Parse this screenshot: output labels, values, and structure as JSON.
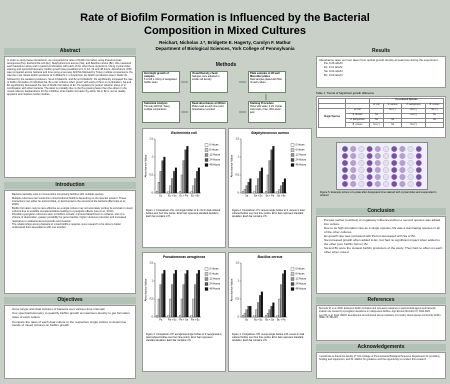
{
  "header": {
    "title": "Rate of Biofilm Formation is Influenced by the Bacterial Composition in Mixed Cultures",
    "authors": "Reichart, Nicholas J.*, Bridgette E. Hagerty, Carolyn F. Mathur",
    "affiliation": "Department of Biological Sciences, York College of Pennsylvania"
  },
  "abstract": {
    "heading": "Abstract",
    "text": "In order to study these interactions, we compared the rates of biofilm formation using Pseudomonas aeruginosa (Pa), Escherichia coli (Ec), Staphylococcus aureus (Sa), and Bacillus cereus (Bc). We measured each bacterium alone and in paired combination with each of the other three organisms. Using crystal violet staining and spectrophotometry, biofilm growth was quantified at 0, 6, 12, 24 and 48 hours. Absorbance (OD) was compared across bacteria and time using a two-way ANOVA followed by Tukey multiple comparisons. Pa was the most robust biofilm producer at 0.46abs/hr. In comparison, Ec biofilm production was 0.11abs /hr., followed by the weakest producers, Sa at 0.04abs/hr. and Bc at 0.03abs/hr. Pa significantly increased the rate of biofilm formation of individual Sa, Bc or Ec cultures when grown with each of them in combination. Sa and Bc significantly decreased the rate of biofilm formation of Ec. Pa replaces its partner whether alone or in combination with other bacteria. The latter is probably due to the Pa growing faster than the others in the mixed cultures. Explanations for the inhibition of Ec biofilm formation by either Sa or Bc is not as readily apparent and requires further studies."
  },
  "introduction": {
    "heading": "Introduction",
    "bullets": [
      "Bacteria naturally exist in communities comprising biofilms with multiple species.",
      "Multiple outcomes can result from mixed cultured biofilms depending on the species present. These interactions can either be antimicrobial, or detrimental to the survival of the bacteria (Burmolle et al., 2006).",
      "Biofilm formation may be less effective as a single culture may not accurately portray its survival in mixed cultures due to possible complementation leading to synergistic effects (Lee et al., 2014).",
      "Possible synergistic outcomes seen in biofilms include: improved attachment to surfaces, loss of a chance of desiccation, greater possibility for gene transfer, higher virulence potential, and increased resistance to antibacterial compounds and invasion.",
      "The relationships among bacteria in mixed biofilms requires more research to be done to better understand their associations with one another."
    ]
  },
  "objectives": {
    "heading": "Objectives",
    "bullets": [
      "Grow single and dual cultures of bacteria over various time intervals",
      "Use spectrophotometry to quantify biofilm growth at maximum density to get formation rates of each culture",
      "Compare the rates of each dual culture to the respective single culture to determine trends of mixed cultures on biofilm growth"
    ]
  },
  "methods": {
    "heading": "Methods",
    "steps": [
      {
        "title": "Overnight growth of samples",
        "text": "5 ml LB 1 colony of designated biofilm strain"
      },
      {
        "title": "Visual Density check",
        "text": "Samples were adjusted to similar cell density"
      },
      {
        "title": "Plate samples in 96 well Microtiter plates",
        "text": "Dual samples plated with 50ul of each culture"
      },
      {
        "title": "Statistical Analysis",
        "text": "Two-way ANOVA, Tukey multiple comparisons"
      },
      {
        "title": "Read absorbance at 600nm",
        "text": "Plates read at each time point, Absorbance recorded"
      },
      {
        "title": "Staining Procedure",
        "text": "Rinse with water, 0.1% crystal violet stain, rinse, 30% acetic acid"
      }
    ]
  },
  "figures": [
    {
      "title": "Escherichia coli",
      "caption": "Figure 1. Comparison of E. coli single bottles to E. coli in dual cultured bottles over four time points. Error bars represent standard deviation. Each bar contains n=5.",
      "ylabel": "Absorbance Value",
      "categories": [
        "Ec",
        "Ec + Sa",
        "Ec + Pa",
        "Ec + Bc"
      ],
      "ylim": [
        0,
        1.5
      ],
      "yticks": [
        0,
        0.5,
        1,
        1.5
      ],
      "series": [
        {
          "name": "0 Hours",
          "color": "#ffffff",
          "values": [
            0.05,
            0.05,
            0.05,
            0.05
          ]
        },
        {
          "name": "6 Hours",
          "color": "#cccccc",
          "values": [
            0.3,
            0.2,
            0.5,
            0.2
          ]
        },
        {
          "name": "12 Hours",
          "color": "#999999",
          "values": [
            0.6,
            0.4,
            0.9,
            0.4
          ]
        },
        {
          "name": "24 Hours",
          "color": "#555555",
          "values": [
            0.9,
            0.6,
            1.2,
            0.6
          ]
        },
        {
          "name": "48 Hours",
          "color": "#111111",
          "values": [
            1.0,
            0.7,
            1.3,
            0.7
          ]
        }
      ]
    },
    {
      "title": "Staphylococcus aureus",
      "caption": "Figure 2. Comparison of S. aureus single bottles to S. aureus in dual cultured bottles over four time points. Error bars represent standard deviation. Each bar contains n=5.",
      "ylabel": "Absorbance Value",
      "categories": [
        "Sa",
        "Sa + Ec",
        "Sa + Pa",
        "Sa + Bc"
      ],
      "ylim": [
        0,
        1.5
      ],
      "yticks": [
        0,
        0.5,
        1,
        1.5
      ],
      "series": [
        {
          "name": "0 Hours",
          "color": "#ffffff",
          "values": [
            0.05,
            0.05,
            0.05,
            0.05
          ]
        },
        {
          "name": "6 Hours",
          "color": "#cccccc",
          "values": [
            0.1,
            0.2,
            0.5,
            0.1
          ]
        },
        {
          "name": "12 Hours",
          "color": "#999999",
          "values": [
            0.2,
            0.4,
            0.9,
            0.2
          ]
        },
        {
          "name": "24 Hours",
          "color": "#555555",
          "values": [
            0.3,
            0.6,
            1.2,
            0.3
          ]
        },
        {
          "name": "48 Hours",
          "color": "#111111",
          "values": [
            0.4,
            0.7,
            1.3,
            0.4
          ]
        }
      ]
    },
    {
      "title": "Pseudomonas aeruginosa",
      "caption": "Figure 3. Comparison of P. aeruginosa single bottles to P. aeruginosa in dual cultured bottles over four time points. Error bars represent standard deviation. Each bar contains n=5.",
      "ylabel": "Absorbance Value",
      "categories": [
        "Pa",
        "Pa + Ec",
        "Pa + Sa",
        "Pa + Bc"
      ],
      "ylim": [
        0,
        1.5
      ],
      "yticks": [
        0,
        0.5,
        1,
        1.5
      ],
      "series": [
        {
          "name": "0 Hours",
          "color": "#ffffff",
          "values": [
            0.05,
            0.05,
            0.05,
            0.05
          ]
        },
        {
          "name": "6 Hours",
          "color": "#cccccc",
          "values": [
            0.5,
            0.5,
            0.5,
            0.5
          ]
        },
        {
          "name": "12 Hours",
          "color": "#999999",
          "values": [
            0.9,
            0.9,
            0.9,
            0.9
          ]
        },
        {
          "name": "24 Hours",
          "color": "#555555",
          "values": [
            1.2,
            1.2,
            1.2,
            1.2
          ]
        },
        {
          "name": "48 Hours",
          "color": "#111111",
          "values": [
            1.3,
            1.3,
            1.3,
            1.3
          ]
        }
      ]
    },
    {
      "title": "Bacillus cereus",
      "caption": "Figure 4. Comparison of B. cereus single bottles to B. cereus in dual cultured bottles over four time points. Error bars represent standard deviation. Each bar contains n=5.",
      "ylabel": "Absorbance Value",
      "categories": [
        "Bc",
        "Bc + Ec",
        "Bc + Sa",
        "Bc + Pa"
      ],
      "ylim": [
        0,
        1.5
      ],
      "yticks": [
        0,
        0.5,
        1,
        1.5
      ],
      "series": [
        {
          "name": "0 Hours",
          "color": "#ffffff",
          "values": [
            0.05,
            0.05,
            0.05,
            0.05
          ]
        },
        {
          "name": "6 Hours",
          "color": "#cccccc",
          "values": [
            0.1,
            0.2,
            0.1,
            0.5
          ]
        },
        {
          "name": "12 Hours",
          "color": "#999999",
          "values": [
            0.2,
            0.4,
            0.2,
            0.9
          ]
        },
        {
          "name": "24 Hours",
          "color": "#555555",
          "values": [
            0.3,
            0.6,
            0.3,
            1.2
          ]
        },
        {
          "name": "48 Hours",
          "color": "#111111",
          "values": [
            0.3,
            0.7,
            0.4,
            1.3
          ]
        }
      ]
    }
  ],
  "results": {
    "heading": "Results",
    "text": "Absorbance rates per hour taken from optical growth density at peak time during the experiment.",
    "bullets": [
      "Pa: 0.46 abs/hr",
      "Ec: 0.11 abs/hr",
      "Sa: 0.04 abs/hr",
      "Bc: 0.03 abs/hr"
    ]
  },
  "table": {
    "caption": "Table 1. Trends of Significant growth difference",
    "header": [
      "",
      "E. coli",
      "S. aureus",
      "P. aeruginosa",
      "B. cereus"
    ],
    "group": "Single Species",
    "top": "Co-cultured Species",
    "rows": [
      [
        "E. coli",
        "",
        "No (↓)",
        "Yes (↑)",
        "No (↓)"
      ],
      [
        "S. aureus",
        "No",
        "",
        "Yes (↑)",
        "No"
      ],
      [
        "P. aeruginosa",
        "No",
        "No",
        "",
        "No"
      ],
      [
        "B. cereus",
        "Yes (↑)",
        "No",
        "Yes (↑)",
        ""
      ]
    ]
  },
  "figure5": {
    "caption": "Figure 5. Example picture of a plate after designated time stained with crystal violet and suspended in ethanol"
  },
  "conclusion": {
    "heading": "Conclusion",
    "bullets": [
      "Pa was neither positively or negatively influenced when a second species was added into culture.",
      "Due to its high formation rate as a single species, Pa was a dominating species in all of the other cultures.",
      "Ec growth rate was increased with Pa but decreased with Sa or Bc.",
      "Sa increased growth when added to Ec, but had no significant impact when added to the other poor biofilm former, Bc.",
      "Sa and Bc were the slowest biofilm producers of the study. They had no effect on each other when mixed."
    ]
  },
  "references": {
    "heading": "References",
    "items": [
      "Burmolle M, et al. 2006. Enhanced biofilm formation and increased resistance to antimicrobial agents and bacterial invasion are caused by synergistic interactions in multispecies biofilms. Appl Environ Microbiol 72: 3916-3923.",
      "Lee KW, et al. 2014. Biofilm development and enhanced stress resistance of a model, mixed-species community biofilm. ISME J 8: 894-907."
    ]
  },
  "acknowledgments": {
    "heading": "Acknowledgements",
    "text": "I would like to thank the faculty of York College of Pennsylvania Biological Sciences Department for providing funding and equipment, and Dr. Mathur for guidance and the opportunity to conduct this research."
  }
}
